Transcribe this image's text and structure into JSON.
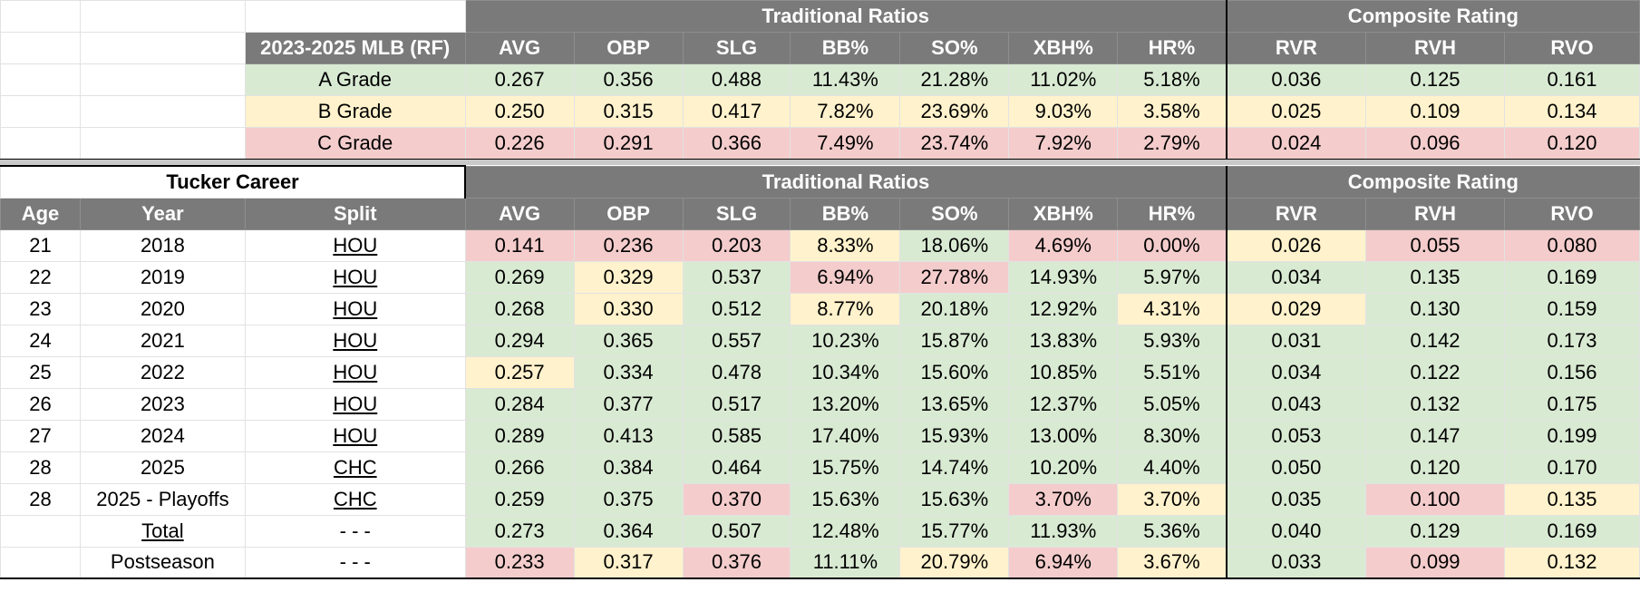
{
  "grades_table": {
    "header_left": "2023-2025 MLB (RF)",
    "group_traditional": "Traditional Ratios",
    "group_composite": "Composite Rating",
    "columns": [
      "AVG",
      "OBP",
      "SLG",
      "BB%",
      "SO%",
      "XBH%",
      "HR%",
      "RVR",
      "RVH",
      "RVO"
    ],
    "rows": [
      {
        "label": "A Grade",
        "tone": "g",
        "values": [
          "0.267",
          "0.356",
          "0.488",
          "11.43%",
          "21.28%",
          "11.02%",
          "5.18%",
          "0.036",
          "0.125",
          "0.161"
        ]
      },
      {
        "label": "B Grade",
        "tone": "y",
        "values": [
          "0.250",
          "0.315",
          "0.417",
          "7.82%",
          "23.69%",
          "9.03%",
          "3.58%",
          "0.025",
          "0.109",
          "0.134"
        ]
      },
      {
        "label": "C Grade",
        "tone": "r",
        "values": [
          "0.226",
          "0.291",
          "0.366",
          "7.49%",
          "23.74%",
          "7.92%",
          "2.79%",
          "0.024",
          "0.096",
          "0.120"
        ]
      }
    ]
  },
  "career_table": {
    "title": "Tucker Career",
    "group_traditional": "Traditional Ratios",
    "group_composite": "Composite Rating",
    "id_headers": [
      "Age",
      "Year",
      "Split"
    ],
    "columns": [
      "AVG",
      "OBP",
      "SLG",
      "BB%",
      "SO%",
      "XBH%",
      "HR%",
      "RVR",
      "RVH",
      "RVO"
    ],
    "rows": [
      {
        "age": "21",
        "year": "2018",
        "split": "HOU",
        "values": [
          "0.141",
          "0.236",
          "0.203",
          "8.33%",
          "18.06%",
          "4.69%",
          "0.00%",
          "0.026",
          "0.055",
          "0.080"
        ],
        "tones": [
          "r",
          "r",
          "r",
          "y",
          "g",
          "r",
          "r",
          "y",
          "r",
          "r"
        ]
      },
      {
        "age": "22",
        "year": "2019",
        "split": "HOU",
        "values": [
          "0.269",
          "0.329",
          "0.537",
          "6.94%",
          "27.78%",
          "14.93%",
          "5.97%",
          "0.034",
          "0.135",
          "0.169"
        ],
        "tones": [
          "g",
          "y",
          "g",
          "r",
          "r",
          "g",
          "g",
          "g",
          "g",
          "g"
        ]
      },
      {
        "age": "23",
        "year": "2020",
        "split": "HOU",
        "values": [
          "0.268",
          "0.330",
          "0.512",
          "8.77%",
          "20.18%",
          "12.92%",
          "4.31%",
          "0.029",
          "0.130",
          "0.159"
        ],
        "tones": [
          "g",
          "y",
          "g",
          "y",
          "g",
          "g",
          "y",
          "y",
          "g",
          "g"
        ]
      },
      {
        "age": "24",
        "year": "2021",
        "split": "HOU",
        "values": [
          "0.294",
          "0.365",
          "0.557",
          "10.23%",
          "15.87%",
          "13.83%",
          "5.93%",
          "0.031",
          "0.142",
          "0.173"
        ],
        "tones": [
          "g",
          "g",
          "g",
          "g",
          "g",
          "g",
          "g",
          "g",
          "g",
          "g"
        ]
      },
      {
        "age": "25",
        "year": "2022",
        "split": "HOU",
        "values": [
          "0.257",
          "0.334",
          "0.478",
          "10.34%",
          "15.60%",
          "10.85%",
          "5.51%",
          "0.034",
          "0.122",
          "0.156"
        ],
        "tones": [
          "y",
          "g",
          "g",
          "g",
          "g",
          "g",
          "g",
          "g",
          "g",
          "g"
        ]
      },
      {
        "age": "26",
        "year": "2023",
        "split": "HOU",
        "values": [
          "0.284",
          "0.377",
          "0.517",
          "13.20%",
          "13.65%",
          "12.37%",
          "5.05%",
          "0.043",
          "0.132",
          "0.175"
        ],
        "tones": [
          "g",
          "g",
          "g",
          "g",
          "g",
          "g",
          "g",
          "g",
          "g",
          "g"
        ]
      },
      {
        "age": "27",
        "year": "2024",
        "split": "HOU",
        "values": [
          "0.289",
          "0.413",
          "0.585",
          "17.40%",
          "15.93%",
          "13.00%",
          "8.30%",
          "0.053",
          "0.147",
          "0.199"
        ],
        "tones": [
          "g",
          "g",
          "g",
          "g",
          "g",
          "g",
          "g",
          "g",
          "g",
          "g"
        ]
      },
      {
        "age": "28",
        "year": "2025",
        "split": "CHC",
        "values": [
          "0.266",
          "0.384",
          "0.464",
          "15.75%",
          "14.74%",
          "10.20%",
          "4.40%",
          "0.050",
          "0.120",
          "0.170"
        ],
        "tones": [
          "g",
          "g",
          "g",
          "g",
          "g",
          "g",
          "g",
          "g",
          "g",
          "g"
        ]
      },
      {
        "age": "28",
        "year": "2025 - Playoffs",
        "split": "CHC",
        "values": [
          "0.259",
          "0.375",
          "0.370",
          "15.63%",
          "15.63%",
          "3.70%",
          "3.70%",
          "0.035",
          "0.100",
          "0.135"
        ],
        "tones": [
          "g",
          "g",
          "r",
          "g",
          "g",
          "r",
          "y",
          "g",
          "r",
          "y"
        ]
      },
      {
        "age": "",
        "year": "Total",
        "split": "- - -",
        "values": [
          "0.273",
          "0.364",
          "0.507",
          "12.48%",
          "15.77%",
          "11.93%",
          "5.36%",
          "0.040",
          "0.129",
          "0.169"
        ],
        "tones": [
          "g",
          "g",
          "g",
          "g",
          "g",
          "g",
          "g",
          "g",
          "g",
          "g"
        ]
      },
      {
        "age": "",
        "year": "Postseason",
        "split": "- - -",
        "values": [
          "0.233",
          "0.317",
          "0.376",
          "11.11%",
          "20.79%",
          "6.94%",
          "3.67%",
          "0.033",
          "0.099",
          "0.132"
        ],
        "tones": [
          "r",
          "y",
          "r",
          "g",
          "y",
          "r",
          "y",
          "g",
          "r",
          "y"
        ]
      }
    ]
  }
}
